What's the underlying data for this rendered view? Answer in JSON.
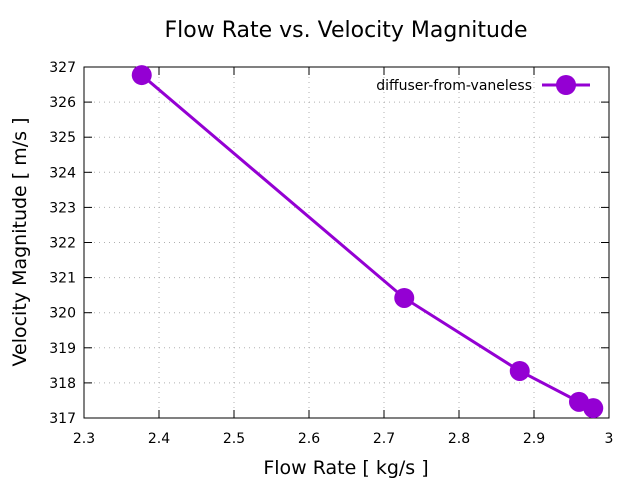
{
  "chart_data": {
    "type": "line",
    "title": "Flow Rate vs. Velocity Magnitude",
    "xlabel": "Flow Rate [ kg/s ]",
    "ylabel": "Velocity Magnitude [ m/s ]",
    "xlim": [
      2.3,
      3.0
    ],
    "ylim": [
      317,
      327
    ],
    "xticks": [
      2.3,
      2.4,
      2.5,
      2.6,
      2.7,
      2.8,
      2.9,
      3.0
    ],
    "xtick_labels": [
      "2.3",
      "2.4",
      "2.5",
      "2.6",
      "2.7",
      "2.8",
      "2.9",
      "3"
    ],
    "yticks": [
      317,
      318,
      319,
      320,
      321,
      322,
      323,
      324,
      325,
      326,
      327
    ],
    "ytick_labels": [
      "317",
      "318",
      "319",
      "320",
      "321",
      "322",
      "323",
      "324",
      "325",
      "326",
      "327"
    ],
    "grid": true,
    "legend_position": "top-right",
    "series": [
      {
        "name": "diffuser-from-vaneless",
        "color": "#9400d3",
        "marker": "circle",
        "x": [
          2.377,
          2.727,
          2.881,
          2.96,
          2.979
        ],
        "y": [
          326.77,
          320.42,
          318.34,
          317.46,
          317.28
        ]
      }
    ]
  }
}
